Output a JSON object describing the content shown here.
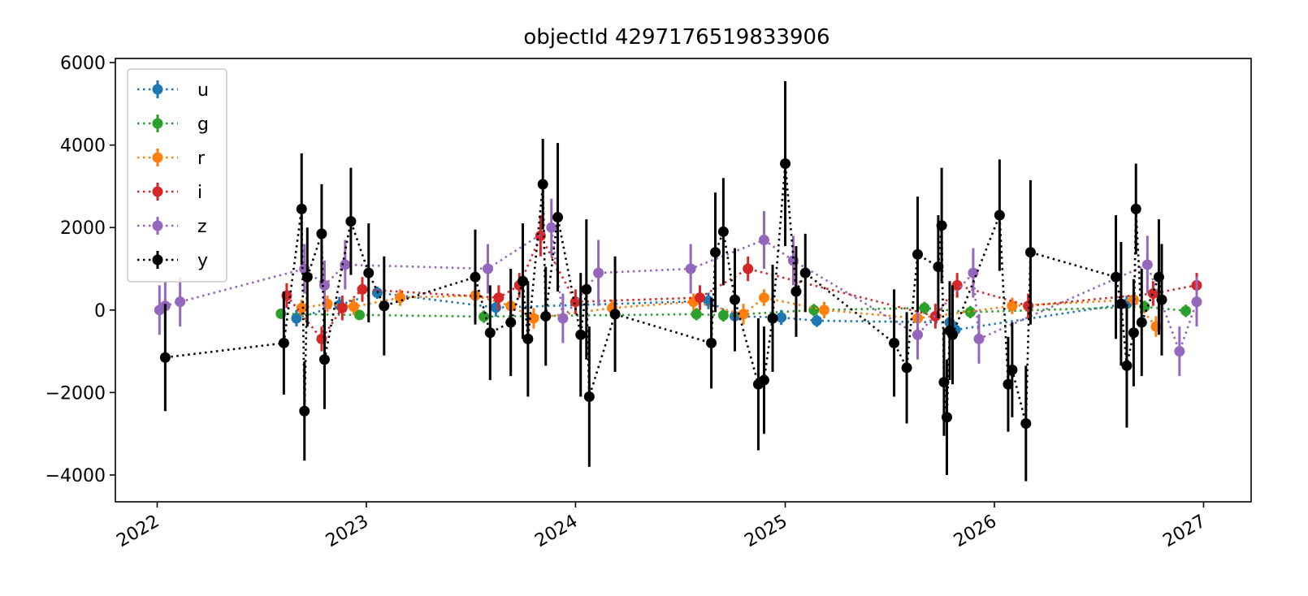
{
  "chart_data": {
    "type": "scatter",
    "title": "objectId 4297176519833906",
    "xlabel": "",
    "ylabel": "",
    "x_type": "date",
    "xlim": [
      "2021-10-20",
      "2027-03-25"
    ],
    "ylim": [
      -4650,
      6100
    ],
    "x_ticks": [
      "2022-01-01",
      "2023-01-01",
      "2024-01-01",
      "2025-01-01",
      "2026-01-01",
      "2027-01-01"
    ],
    "x_tick_labels": [
      "2022",
      "2023",
      "2024",
      "2025",
      "2026",
      "2027"
    ],
    "y_ticks": [
      6000,
      4000,
      2000,
      0,
      -2000,
      -4000
    ],
    "y_tick_labels": [
      "6000",
      "4000",
      "2000",
      "0",
      "−2000",
      "−4000"
    ],
    "grid": false,
    "legend_position": "upper-left",
    "line_style": "dotted",
    "series": [
      {
        "name": "u",
        "color": "#1f77b4",
        "points": [
          {
            "x": "2022-09-01",
            "y": -200,
            "err": 200
          },
          {
            "x": "2022-11-15",
            "y": 120,
            "err": 200
          },
          {
            "x": "2023-01-20",
            "y": 420,
            "err": 150
          },
          {
            "x": "2023-08-15",
            "y": 60,
            "err": 220
          },
          {
            "x": "2024-08-20",
            "y": 220,
            "err": 200
          },
          {
            "x": "2024-10-05",
            "y": -150,
            "err": 200
          },
          {
            "x": "2024-12-25",
            "y": -180,
            "err": 180
          },
          {
            "x": "2025-02-25",
            "y": -260,
            "err": 150
          },
          {
            "x": "2025-10-15",
            "y": -300,
            "err": 220
          },
          {
            "x": "2025-10-25",
            "y": -480,
            "err": 200
          },
          {
            "x": "2026-08-20",
            "y": 150,
            "err": 200
          }
        ]
      },
      {
        "name": "g",
        "color": "#2ca02c",
        "points": [
          {
            "x": "2022-08-05",
            "y": -90,
            "err": 120
          },
          {
            "x": "2022-12-20",
            "y": -120,
            "err": 120
          },
          {
            "x": "2023-07-25",
            "y": -160,
            "err": 150
          },
          {
            "x": "2024-07-30",
            "y": -100,
            "err": 150
          },
          {
            "x": "2024-09-15",
            "y": -130,
            "err": 150
          },
          {
            "x": "2025-02-20",
            "y": 0,
            "err": 150
          },
          {
            "x": "2025-09-01",
            "y": 50,
            "err": 150
          },
          {
            "x": "2025-11-20",
            "y": -50,
            "err": 150
          },
          {
            "x": "2026-09-20",
            "y": 80,
            "err": 150
          },
          {
            "x": "2026-12-01",
            "y": -20,
            "err": 150
          }
        ]
      },
      {
        "name": "r",
        "color": "#ff7f0e",
        "points": [
          {
            "x": "2022-09-10",
            "y": 50,
            "err": 200
          },
          {
            "x": "2022-10-25",
            "y": 150,
            "err": 200
          },
          {
            "x": "2022-12-10",
            "y": 80,
            "err": 200
          },
          {
            "x": "2023-03-01",
            "y": 300,
            "err": 200
          },
          {
            "x": "2023-07-10",
            "y": 350,
            "err": 250
          },
          {
            "x": "2023-09-10",
            "y": 100,
            "err": 250
          },
          {
            "x": "2023-10-20",
            "y": -200,
            "err": 250
          },
          {
            "x": "2024-03-05",
            "y": 50,
            "err": 200
          },
          {
            "x": "2024-07-25",
            "y": 200,
            "err": 200
          },
          {
            "x": "2024-10-20",
            "y": -100,
            "err": 250
          },
          {
            "x": "2024-11-25",
            "y": 300,
            "err": 200
          },
          {
            "x": "2025-03-10",
            "y": 0,
            "err": 200
          },
          {
            "x": "2025-08-20",
            "y": -200,
            "err": 250
          },
          {
            "x": "2026-02-01",
            "y": 100,
            "err": 200
          },
          {
            "x": "2026-09-01",
            "y": 250,
            "err": 200
          },
          {
            "x": "2026-10-10",
            "y": -400,
            "err": 250
          }
        ]
      },
      {
        "name": "i",
        "color": "#d62728",
        "points": [
          {
            "x": "2022-08-15",
            "y": 350,
            "err": 300
          },
          {
            "x": "2022-10-15",
            "y": -700,
            "err": 300
          },
          {
            "x": "2022-11-20",
            "y": 50,
            "err": 300
          },
          {
            "x": "2022-12-25",
            "y": 500,
            "err": 300
          },
          {
            "x": "2023-08-20",
            "y": 300,
            "err": 300
          },
          {
            "x": "2023-09-25",
            "y": 600,
            "err": 300
          },
          {
            "x": "2023-11-01",
            "y": 1800,
            "err": 500
          },
          {
            "x": "2024-01-01",
            "y": 200,
            "err": 300
          },
          {
            "x": "2024-08-05",
            "y": 300,
            "err": 300
          },
          {
            "x": "2024-10-28",
            "y": 1000,
            "err": 300
          },
          {
            "x": "2025-09-20",
            "y": -150,
            "err": 300
          },
          {
            "x": "2025-10-28",
            "y": 600,
            "err": 300
          },
          {
            "x": "2026-03-01",
            "y": 100,
            "err": 300
          },
          {
            "x": "2026-10-05",
            "y": 400,
            "err": 300
          },
          {
            "x": "2026-12-20",
            "y": 600,
            "err": 300
          }
        ]
      },
      {
        "name": "z",
        "color": "#9467bd",
        "points": [
          {
            "x": "2022-01-05",
            "y": 0,
            "err": 600
          },
          {
            "x": "2022-01-15",
            "y": 100,
            "err": 600
          },
          {
            "x": "2022-02-10",
            "y": 200,
            "err": 600
          },
          {
            "x": "2022-09-15",
            "y": 1000,
            "err": 600
          },
          {
            "x": "2022-10-20",
            "y": 600,
            "err": 600
          },
          {
            "x": "2022-11-25",
            "y": 1100,
            "err": 600
          },
          {
            "x": "2023-08-01",
            "y": 1000,
            "err": 600
          },
          {
            "x": "2023-11-20",
            "y": 2000,
            "err": 700
          },
          {
            "x": "2023-12-10",
            "y": -200,
            "err": 600
          },
          {
            "x": "2024-02-10",
            "y": 900,
            "err": 800
          },
          {
            "x": "2024-07-20",
            "y": 1000,
            "err": 600
          },
          {
            "x": "2024-11-25",
            "y": 1700,
            "err": 700
          },
          {
            "x": "2025-01-15",
            "y": 1200,
            "err": 600
          },
          {
            "x": "2025-08-20",
            "y": -600,
            "err": 600
          },
          {
            "x": "2025-11-25",
            "y": 900,
            "err": 600
          },
          {
            "x": "2025-12-05",
            "y": -700,
            "err": 600
          },
          {
            "x": "2026-09-25",
            "y": 1100,
            "err": 700
          },
          {
            "x": "2026-11-20",
            "y": -1000,
            "err": 600
          },
          {
            "x": "2026-12-20",
            "y": 200,
            "err": 600
          }
        ]
      },
      {
        "name": "y",
        "color": "#000000",
        "points": [
          {
            "x": "2022-01-15",
            "y": -1150,
            "err": 1300
          },
          {
            "x": "2022-08-10",
            "y": -800,
            "err": 1250
          },
          {
            "x": "2022-09-10",
            "y": 2450,
            "err": 1350
          },
          {
            "x": "2022-09-15",
            "y": -2450,
            "err": 1200
          },
          {
            "x": "2022-09-20",
            "y": 800,
            "err": 1200
          },
          {
            "x": "2022-10-15",
            "y": 1850,
            "err": 1200
          },
          {
            "x": "2022-10-20",
            "y": -1200,
            "err": 1200
          },
          {
            "x": "2022-12-05",
            "y": 2150,
            "err": 1300
          },
          {
            "x": "2023-01-05",
            "y": 900,
            "err": 1200
          },
          {
            "x": "2023-02-01",
            "y": 100,
            "err": 1200
          },
          {
            "x": "2023-07-10",
            "y": 800,
            "err": 1150
          },
          {
            "x": "2023-08-05",
            "y": -550,
            "err": 1150
          },
          {
            "x": "2023-09-10",
            "y": -300,
            "err": 1300
          },
          {
            "x": "2023-10-01",
            "y": 700,
            "err": 1400
          },
          {
            "x": "2023-10-10",
            "y": -700,
            "err": 1400
          },
          {
            "x": "2023-11-05",
            "y": 3050,
            "err": 1100
          },
          {
            "x": "2023-11-10",
            "y": -150,
            "err": 1200
          },
          {
            "x": "2023-12-01",
            "y": 2250,
            "err": 1800
          },
          {
            "x": "2024-01-10",
            "y": -600,
            "err": 1500
          },
          {
            "x": "2024-01-20",
            "y": 500,
            "err": 1700
          },
          {
            "x": "2024-01-25",
            "y": -2100,
            "err": 1700
          },
          {
            "x": "2024-03-10",
            "y": -100,
            "err": 1400
          },
          {
            "x": "2024-08-25",
            "y": -800,
            "err": 1100
          },
          {
            "x": "2024-09-01",
            "y": 1400,
            "err": 1450
          },
          {
            "x": "2024-09-15",
            "y": 1900,
            "err": 1300
          },
          {
            "x": "2024-10-05",
            "y": 250,
            "err": 1250
          },
          {
            "x": "2024-11-15",
            "y": -1800,
            "err": 1600
          },
          {
            "x": "2024-11-25",
            "y": -1700,
            "err": 1300
          },
          {
            "x": "2024-12-10",
            "y": -200,
            "err": 1300
          },
          {
            "x": "2025-01-01",
            "y": 3550,
            "err": 2000
          },
          {
            "x": "2025-01-20",
            "y": 450,
            "err": 1100
          },
          {
            "x": "2025-02-05",
            "y": 900,
            "err": 950
          },
          {
            "x": "2025-07-10",
            "y": -800,
            "err": 1300
          },
          {
            "x": "2025-08-01",
            "y": -1400,
            "err": 1350
          },
          {
            "x": "2025-08-20",
            "y": 1350,
            "err": 1400
          },
          {
            "x": "2025-09-25",
            "y": 1050,
            "err": 1250
          },
          {
            "x": "2025-10-01",
            "y": 2050,
            "err": 1400
          },
          {
            "x": "2025-10-05",
            "y": -1750,
            "err": 1300
          },
          {
            "x": "2025-10-10",
            "y": -2600,
            "err": 1400
          },
          {
            "x": "2025-10-15",
            "y": -500,
            "err": 1200
          },
          {
            "x": "2025-10-20",
            "y": -600,
            "err": 1200
          },
          {
            "x": "2026-01-10",
            "y": 2300,
            "err": 1350
          },
          {
            "x": "2026-01-25",
            "y": -1800,
            "err": 1150
          },
          {
            "x": "2026-02-01",
            "y": -1450,
            "err": 1150
          },
          {
            "x": "2026-02-25",
            "y": -2750,
            "err": 1400
          },
          {
            "x": "2026-03-05",
            "y": 1400,
            "err": 1750
          },
          {
            "x": "2026-08-01",
            "y": 800,
            "err": 1500
          },
          {
            "x": "2026-08-10",
            "y": 150,
            "err": 1500
          },
          {
            "x": "2026-08-20",
            "y": -1350,
            "err": 1500
          },
          {
            "x": "2026-09-01",
            "y": -550,
            "err": 1300
          },
          {
            "x": "2026-09-05",
            "y": 2450,
            "err": 1100
          },
          {
            "x": "2026-09-15",
            "y": -300,
            "err": 1300
          },
          {
            "x": "2026-10-15",
            "y": 800,
            "err": 1400
          },
          {
            "x": "2026-10-20",
            "y": 250,
            "err": 1350
          }
        ]
      }
    ]
  }
}
